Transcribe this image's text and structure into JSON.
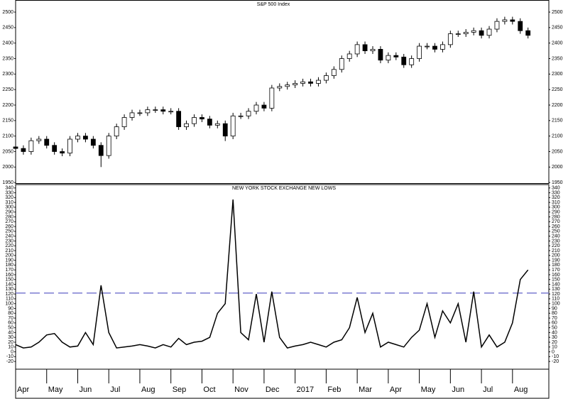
{
  "chart_data": [
    {
      "type": "candlestick",
      "title": "S&P 500 Index",
      "color": "#000000",
      "x": [
        0,
        0.25,
        0.5,
        0.75,
        1,
        1.25,
        1.5,
        1.75,
        2,
        2.25,
        2.5,
        2.75,
        3,
        3.25,
        3.5,
        3.75,
        4,
        4.25,
        4.5,
        4.75,
        5,
        5.25,
        5.5,
        5.75,
        6,
        6.25,
        6.5,
        6.75,
        7,
        7.25,
        7.5,
        7.75,
        8,
        8.25,
        8.5,
        8.75,
        9,
        9.25,
        9.5,
        9.75,
        10,
        10.25,
        10.5,
        10.75,
        11,
        11.25,
        11.5,
        11.75,
        12,
        12.25,
        12.5,
        12.75,
        13,
        13.25,
        13.5,
        13.75,
        14,
        14.25,
        14.5,
        14.75,
        15,
        15.25,
        15.5,
        15.75,
        16,
        16.25,
        16.5
      ],
      "open": [
        2065,
        2060,
        2050,
        2085,
        2090,
        2070,
        2050,
        2045,
        2090,
        2100,
        2090,
        2070,
        2037,
        2100,
        2130,
        2160,
        2175,
        2175,
        2185,
        2185,
        2180,
        2180,
        2130,
        2140,
        2160,
        2155,
        2135,
        2140,
        2100,
        2165,
        2165,
        2180,
        2200,
        2190,
        2255,
        2260,
        2265,
        2270,
        2275,
        2270,
        2280,
        2295,
        2315,
        2350,
        2365,
        2395,
        2375,
        2380,
        2345,
        2360,
        2355,
        2330,
        2350,
        2390,
        2390,
        2380,
        2395,
        2430,
        2430,
        2435,
        2440,
        2425,
        2445,
        2470,
        2475,
        2470,
        2440
      ],
      "high": [
        2075,
        2070,
        2095,
        2100,
        2100,
        2080,
        2060,
        2100,
        2110,
        2110,
        2100,
        2080,
        2110,
        2140,
        2170,
        2185,
        2185,
        2195,
        2195,
        2195,
        2190,
        2190,
        2150,
        2170,
        2170,
        2165,
        2150,
        2150,
        2175,
        2175,
        2190,
        2210,
        2210,
        2265,
        2270,
        2275,
        2280,
        2285,
        2285,
        2290,
        2305,
        2325,
        2360,
        2375,
        2405,
        2405,
        2390,
        2390,
        2370,
        2370,
        2365,
        2360,
        2400,
        2400,
        2400,
        2405,
        2440,
        2440,
        2445,
        2450,
        2450,
        2455,
        2480,
        2485,
        2485,
        2480,
        2450
      ],
      "low": [
        2040,
        2040,
        2040,
        2075,
        2060,
        2040,
        2035,
        2035,
        2080,
        2080,
        2060,
        2000,
        2027,
        2090,
        2120,
        2150,
        2165,
        2165,
        2175,
        2170,
        2170,
        2120,
        2120,
        2130,
        2145,
        2125,
        2125,
        2084,
        2090,
        2155,
        2155,
        2170,
        2180,
        2180,
        2245,
        2250,
        2255,
        2260,
        2260,
        2260,
        2270,
        2285,
        2305,
        2340,
        2355,
        2365,
        2365,
        2335,
        2335,
        2345,
        2320,
        2320,
        2340,
        2380,
        2370,
        2370,
        2385,
        2420,
        2420,
        2425,
        2415,
        2415,
        2435,
        2460,
        2460,
        2430,
        2415
      ],
      "close": [
        2060,
        2050,
        2085,
        2090,
        2070,
        2050,
        2045,
        2090,
        2100,
        2090,
        2070,
        2037,
        2100,
        2130,
        2160,
        2175,
        2175,
        2185,
        2185,
        2180,
        2180,
        2130,
        2140,
        2160,
        2155,
        2135,
        2140,
        2100,
        2165,
        2165,
        2180,
        2200,
        2190,
        2255,
        2260,
        2265,
        2270,
        2275,
        2270,
        2280,
        2295,
        2315,
        2350,
        2365,
        2395,
        2375,
        2380,
        2345,
        2360,
        2355,
        2330,
        2350,
        2390,
        2390,
        2380,
        2395,
        2430,
        2430,
        2435,
        2440,
        2425,
        2445,
        2470,
        2475,
        2470,
        2440,
        2425
      ],
      "xlim": [
        0,
        17.17
      ],
      "ylim": [
        1948,
        2539
      ],
      "yticks": [
        1950,
        2000,
        2050,
        2100,
        2150,
        2200,
        2250,
        2300,
        2350,
        2400,
        2450,
        2500
      ]
    },
    {
      "type": "line",
      "title": "NEW YORK STOCK EXCHANGE NEW LOWS",
      "color": "#000000",
      "x": [
        0,
        0.25,
        0.5,
        0.75,
        1,
        1.25,
        1.5,
        1.75,
        2,
        2.25,
        2.5,
        2.75,
        3,
        3.25,
        3.5,
        3.75,
        4,
        4.25,
        4.5,
        4.75,
        5,
        5.25,
        5.5,
        5.75,
        6,
        6.25,
        6.5,
        6.75,
        7,
        7.25,
        7.5,
        7.75,
        8,
        8.25,
        8.5,
        8.75,
        9,
        9.25,
        9.5,
        9.75,
        10,
        10.25,
        10.5,
        10.75,
        11,
        11.25,
        11.5,
        11.75,
        12,
        12.25,
        12.5,
        12.75,
        13,
        13.25,
        13.5,
        13.75,
        14,
        14.25,
        14.5,
        14.75,
        15,
        15.25,
        15.5,
        15.75,
        16,
        16.25,
        16.5
      ],
      "values": [
        15,
        8,
        10,
        20,
        35,
        38,
        20,
        10,
        12,
        40,
        15,
        138,
        40,
        8,
        10,
        12,
        15,
        12,
        8,
        15,
        10,
        28,
        15,
        20,
        22,
        30,
        80,
        100,
        316,
        40,
        25,
        120,
        20,
        125,
        30,
        8,
        12,
        15,
        20,
        15,
        10,
        20,
        25,
        50,
        113,
        40,
        80,
        10,
        20,
        15,
        10,
        30,
        45,
        100,
        30,
        85,
        60,
        100,
        20,
        125,
        10,
        35,
        10,
        20,
        60,
        150,
        170
      ],
      "reference_line": {
        "value": 122,
        "color": "#7b7bd0"
      },
      "xlim": [
        0,
        17.17
      ],
      "ylim": [
        -36,
        347
      ],
      "yticks": [
        -20,
        -10,
        0,
        10,
        20,
        30,
        40,
        50,
        60,
        70,
        80,
        90,
        100,
        110,
        120,
        130,
        140,
        150,
        160,
        170,
        180,
        190,
        200,
        210,
        220,
        230,
        240,
        250,
        260,
        270,
        280,
        290,
        300,
        310,
        320,
        330,
        340
      ],
      "xticks": [
        {
          "value": 0,
          "label": "Apr"
        },
        {
          "value": 1,
          "label": "May"
        },
        {
          "value": 2,
          "label": "Jun"
        },
        {
          "value": 3,
          "label": "Jul"
        },
        {
          "value": 4,
          "label": "Aug"
        },
        {
          "value": 5,
          "label": "Sep"
        },
        {
          "value": 6,
          "label": "Oct"
        },
        {
          "value": 7,
          "label": "Nov"
        },
        {
          "value": 8,
          "label": "Dec"
        },
        {
          "value": 9,
          "label": "2017"
        },
        {
          "value": 10,
          "label": "Feb"
        },
        {
          "value": 11,
          "label": "Mar"
        },
        {
          "value": 12,
          "label": "Apr"
        },
        {
          "value": 13,
          "label": "May"
        },
        {
          "value": 14,
          "label": "Jun"
        },
        {
          "value": 15,
          "label": "Jul"
        },
        {
          "value": 16,
          "label": "Aug"
        }
      ]
    }
  ]
}
